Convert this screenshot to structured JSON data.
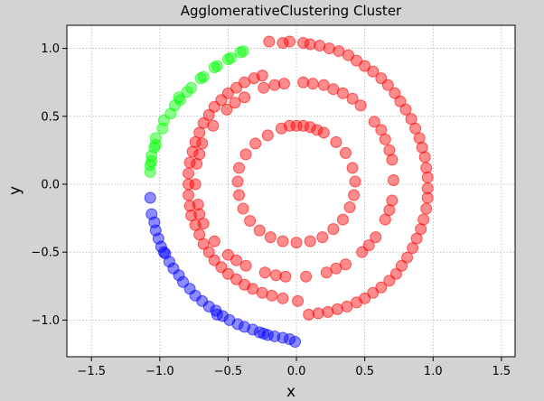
{
  "chart_data": {
    "type": "scatter",
    "title": "AgglomerativeClustering Cluster",
    "xlabel": "x",
    "ylabel": "y",
    "xlim": [
      -1.68,
      1.6
    ],
    "ylim": [
      -1.27,
      1.17
    ],
    "xticks": [
      -1.5,
      -1.0,
      -0.5,
      0.0,
      0.5,
      1.0,
      1.5
    ],
    "yticks": [
      -1.0,
      -0.5,
      0.0,
      0.5,
      1.0
    ],
    "xtick_labels": [
      "−1.5",
      "−1.0",
      "−0.5",
      "0.0",
      "0.5",
      "1.0",
      "1.5"
    ],
    "ytick_labels": [
      "−1.0",
      "−0.5",
      "0.0",
      "0.5",
      "1.0"
    ],
    "grid": true,
    "legend": "none",
    "series": [
      {
        "color": "#ff0000",
        "points": [
          [
            0.0,
            0.43
          ],
          [
            0.1,
            0.42
          ],
          [
            0.2,
            0.38
          ],
          [
            0.29,
            0.31
          ],
          [
            0.36,
            0.23
          ],
          [
            0.41,
            0.12
          ],
          [
            0.43,
            0.02
          ],
          [
            0.42,
            -0.08
          ],
          [
            0.39,
            -0.17
          ],
          [
            0.34,
            -0.26
          ],
          [
            0.27,
            -0.33
          ],
          [
            0.19,
            -0.39
          ],
          [
            0.1,
            -0.42
          ],
          [
            0.0,
            -0.43
          ],
          [
            -0.1,
            -0.42
          ],
          [
            -0.19,
            -0.39
          ],
          [
            -0.27,
            -0.34
          ],
          [
            -0.34,
            -0.27
          ],
          [
            -0.39,
            -0.18
          ],
          [
            -0.42,
            -0.08
          ],
          [
            -0.43,
            0.02
          ],
          [
            -0.42,
            0.12
          ],
          [
            -0.37,
            0.22
          ],
          [
            -0.3,
            0.3
          ],
          [
            -0.21,
            0.36
          ],
          [
            -0.11,
            0.41
          ],
          [
            0.05,
            0.43
          ],
          [
            0.15,
            0.4
          ],
          [
            -0.05,
            0.43
          ],
          [
            0.05,
            0.75
          ],
          [
            0.2,
            0.73
          ],
          [
            0.34,
            0.67
          ],
          [
            0.47,
            0.58
          ],
          [
            0.57,
            0.46
          ],
          [
            0.65,
            0.33
          ],
          [
            0.7,
            0.18
          ],
          [
            0.71,
            0.03
          ],
          [
            0.7,
            -0.12
          ],
          [
            0.65,
            -0.26
          ],
          [
            0.58,
            -0.39
          ],
          [
            0.48,
            -0.5
          ],
          [
            0.36,
            -0.59
          ],
          [
            0.22,
            -0.65
          ],
          [
            0.07,
            -0.68
          ],
          [
            -0.08,
            -0.68
          ],
          [
            -0.23,
            -0.65
          ],
          [
            -0.37,
            -0.6
          ],
          [
            -0.5,
            -0.52
          ],
          [
            -0.6,
            -0.42
          ],
          [
            -0.68,
            -0.29
          ],
          [
            -0.72,
            -0.15
          ],
          [
            -0.74,
            0.0
          ],
          [
            -0.73,
            0.15
          ],
          [
            -0.69,
            0.3
          ],
          [
            -0.61,
            0.43
          ],
          [
            -0.51,
            0.55
          ],
          [
            -0.38,
            0.64
          ],
          [
            -0.24,
            0.71
          ],
          [
            -0.09,
            0.74
          ],
          [
            0.12,
            0.74
          ],
          [
            0.27,
            0.7
          ],
          [
            0.41,
            0.63
          ],
          [
            0.62,
            0.4
          ],
          [
            0.68,
            0.25
          ],
          [
            0.68,
            -0.19
          ],
          [
            0.53,
            -0.45
          ],
          [
            0.29,
            -0.62
          ],
          [
            -0.15,
            -0.67
          ],
          [
            -0.44,
            -0.56
          ],
          [
            -0.71,
            -0.22
          ],
          [
            -0.71,
            0.22
          ],
          [
            -0.45,
            0.6
          ],
          [
            -0.16,
            0.73
          ],
          [
            -0.2,
            1.05
          ],
          [
            -0.05,
            1.05
          ],
          [
            0.1,
            1.03
          ],
          [
            0.24,
            1.0
          ],
          [
            0.38,
            0.95
          ],
          [
            0.5,
            0.87
          ],
          [
            0.62,
            0.78
          ],
          [
            0.72,
            0.67
          ],
          [
            0.8,
            0.55
          ],
          [
            0.87,
            0.41
          ],
          [
            0.92,
            0.27
          ],
          [
            0.95,
            0.12
          ],
          [
            0.96,
            -0.03
          ],
          [
            0.95,
            -0.18
          ],
          [
            0.91,
            -0.33
          ],
          [
            0.85,
            -0.47
          ],
          [
            0.77,
            -0.6
          ],
          [
            0.68,
            -0.71
          ],
          [
            0.56,
            -0.8
          ],
          [
            0.44,
            -0.87
          ],
          [
            0.3,
            -0.92
          ],
          [
            0.16,
            -0.95
          ],
          [
            0.01,
            -0.86
          ],
          [
            -0.1,
            -0.84
          ],
          [
            -0.25,
            -0.8
          ],
          [
            -0.38,
            -0.74
          ],
          [
            -0.5,
            -0.66
          ],
          [
            -0.6,
            -0.56
          ],
          [
            -0.68,
            -0.44
          ],
          [
            -0.74,
            -0.3
          ],
          [
            -0.78,
            -0.16
          ],
          [
            -0.79,
            0.0
          ],
          [
            -0.78,
            0.16
          ],
          [
            -0.74,
            0.31
          ],
          [
            -0.68,
            0.45
          ],
          [
            -0.6,
            0.57
          ],
          [
            -0.5,
            0.67
          ],
          [
            -0.38,
            0.75
          ],
          [
            -0.25,
            0.8
          ],
          [
            -0.1,
            1.04
          ],
          [
            0.05,
            1.04
          ],
          [
            0.17,
            1.02
          ],
          [
            0.31,
            0.98
          ],
          [
            0.44,
            0.91
          ],
          [
            0.56,
            0.83
          ],
          [
            0.67,
            0.73
          ],
          [
            0.76,
            0.61
          ],
          [
            0.84,
            0.48
          ],
          [
            0.9,
            0.34
          ],
          [
            0.94,
            0.2
          ],
          [
            0.96,
            0.05
          ],
          [
            0.96,
            -0.1
          ],
          [
            0.93,
            -0.26
          ],
          [
            0.88,
            -0.4
          ],
          [
            0.81,
            -0.54
          ],
          [
            0.73,
            -0.66
          ],
          [
            0.62,
            -0.76
          ],
          [
            0.5,
            -0.84
          ],
          [
            0.37,
            -0.9
          ],
          [
            0.23,
            -0.94
          ],
          [
            0.09,
            -0.96
          ],
          [
            -0.18,
            -0.82
          ],
          [
            -0.32,
            -0.77
          ],
          [
            -0.44,
            -0.7
          ],
          [
            -0.55,
            -0.61
          ],
          [
            -0.64,
            -0.5
          ],
          [
            -0.71,
            -0.37
          ],
          [
            -0.77,
            -0.23
          ],
          [
            -0.79,
            -0.08
          ],
          [
            -0.79,
            0.08
          ],
          [
            -0.76,
            0.24
          ],
          [
            -0.71,
            0.38
          ],
          [
            -0.64,
            0.51
          ],
          [
            -0.55,
            0.62
          ],
          [
            -0.44,
            0.71
          ],
          [
            -0.31,
            0.78
          ]
        ]
      },
      {
        "color": "#00ff00",
        "points": [
          [
            -0.39,
            0.98
          ],
          [
            -0.48,
            0.93
          ],
          [
            -0.58,
            0.87
          ],
          [
            -0.68,
            0.79
          ],
          [
            -0.77,
            0.71
          ],
          [
            -0.85,
            0.62
          ],
          [
            -0.92,
            0.52
          ],
          [
            -0.98,
            0.41
          ],
          [
            -1.03,
            0.29
          ],
          [
            -1.06,
            0.17
          ],
          [
            -1.07,
            0.09
          ],
          [
            -1.06,
            0.21
          ],
          [
            -1.03,
            0.34
          ],
          [
            -0.97,
            0.47
          ],
          [
            -0.89,
            0.58
          ],
          [
            -0.8,
            0.68
          ],
          [
            -0.7,
            0.78
          ],
          [
            -0.6,
            0.86
          ],
          [
            -0.5,
            0.92
          ],
          [
            -0.41,
            0.97
          ],
          [
            -0.86,
            0.64
          ],
          [
            -1.04,
            0.27
          ],
          [
            -1.07,
            0.14
          ]
        ]
      },
      {
        "color": "#0000ff",
        "points": [
          [
            -1.07,
            -0.1
          ],
          [
            -1.06,
            -0.22
          ],
          [
            -1.03,
            -0.34
          ],
          [
            -0.99,
            -0.46
          ],
          [
            -0.93,
            -0.57
          ],
          [
            -0.86,
            -0.67
          ],
          [
            -0.78,
            -0.77
          ],
          [
            -0.69,
            -0.86
          ],
          [
            -0.59,
            -0.93
          ],
          [
            -0.49,
            -1.0
          ],
          [
            -0.38,
            -1.05
          ],
          [
            -0.27,
            -1.09
          ],
          [
            -0.16,
            -1.12
          ],
          [
            -0.05,
            -1.14
          ],
          [
            -0.01,
            -1.16
          ],
          [
            -0.1,
            -1.13
          ],
          [
            -0.21,
            -1.11
          ],
          [
            -0.32,
            -1.07
          ],
          [
            -0.43,
            -1.03
          ],
          [
            -0.54,
            -0.97
          ],
          [
            -0.64,
            -0.9
          ],
          [
            -0.74,
            -0.82
          ],
          [
            -0.83,
            -0.72
          ],
          [
            -0.9,
            -0.62
          ],
          [
            -0.96,
            -0.51
          ],
          [
            -1.01,
            -0.4
          ],
          [
            -1.04,
            -0.28
          ],
          [
            -0.97,
            -0.5
          ],
          [
            -0.58,
            -0.96
          ],
          [
            -0.24,
            -1.1
          ]
        ]
      }
    ]
  }
}
